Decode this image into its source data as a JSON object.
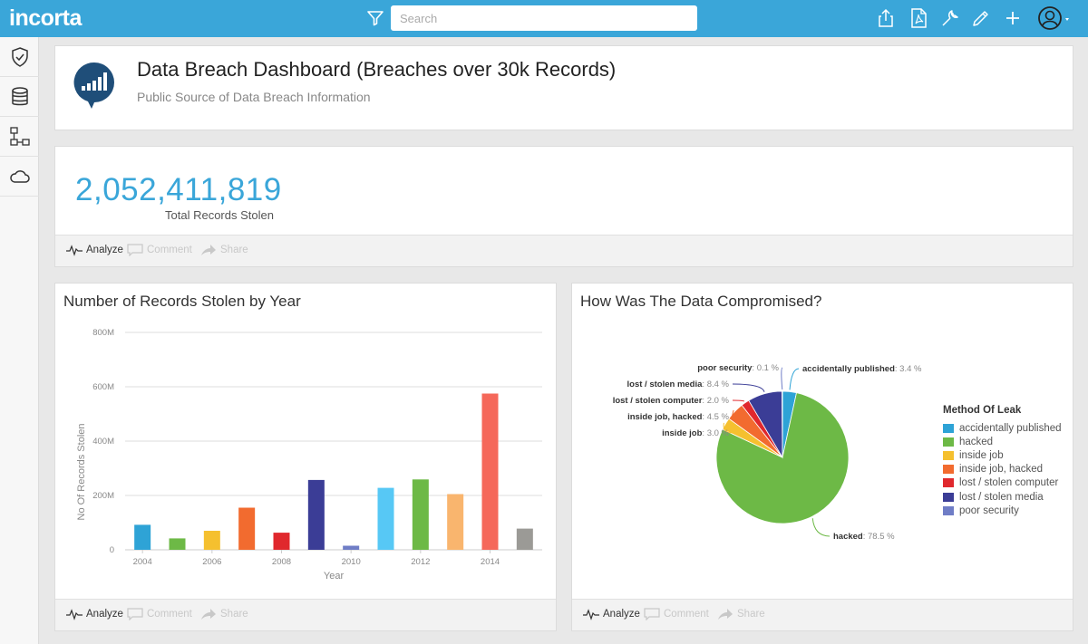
{
  "app": {
    "logo": "incorta",
    "search_placeholder": "Search"
  },
  "header": {
    "title": "Data Breach Dashboard (Breaches over 30k Records)",
    "subtitle": "Public Source of Data Breach Information"
  },
  "kpi": {
    "value": "2,052,411,819",
    "label": "Total Records Stolen"
  },
  "footer": {
    "analyze": "Analyze",
    "comment": "Comment",
    "share": "Share"
  },
  "bar_card": {
    "title": "Number of Records Stolen by Year"
  },
  "pie_card": {
    "title": "How Was The Data Compromised?"
  },
  "chart_data": [
    {
      "type": "bar",
      "title": "Number of Records Stolen by Year",
      "xlabel": "Year",
      "ylabel": "No Of Records Stolen",
      "ylim": [
        0,
        800
      ],
      "yticks": [
        "0",
        "200M",
        "400M",
        "600M",
        "800M"
      ],
      "xticks": [
        "2004",
        "2006",
        "2008",
        "2010",
        "2012",
        "2014"
      ],
      "categories": [
        "2004",
        "2005",
        "2006",
        "2007",
        "2008",
        "2009",
        "2010",
        "2011",
        "2012",
        "2013",
        "2014",
        "2015"
      ],
      "values": [
        92,
        42,
        70,
        155,
        63,
        257,
        15,
        228,
        259,
        205,
        575,
        78
      ],
      "colors": [
        "#2ea3d6",
        "#6db946",
        "#f5c02f",
        "#f26b2f",
        "#e0282d",
        "#3b3d96",
        "#6f7dc6",
        "#57c8f5",
        "#6db946",
        "#f9b56e",
        "#f5685a",
        "#9b9a96"
      ],
      "grid": true
    },
    {
      "type": "pie",
      "title": "How Was The Data Compromised?",
      "legend_title": "Method Of Leak",
      "legend_position": "right",
      "slices": [
        {
          "label": "accidentally published",
          "value": 3.4,
          "pct": "3.4 %",
          "color": "#2ea3d6"
        },
        {
          "label": "hacked",
          "value": 78.5,
          "pct": "78.5 %",
          "color": "#6db946"
        },
        {
          "label": "inside job",
          "value": 3.0,
          "pct": "3.0 %",
          "color": "#f5c02f"
        },
        {
          "label": "inside job, hacked",
          "value": 4.5,
          "pct": "4.5 %",
          "color": "#f26b2f"
        },
        {
          "label": "lost / stolen computer",
          "value": 2.0,
          "pct": "2.0 %",
          "color": "#e0282d"
        },
        {
          "label": "lost / stolen media",
          "value": 8.4,
          "pct": "8.4 %",
          "color": "#3b3d96"
        },
        {
          "label": "poor security",
          "value": 0.1,
          "pct": "0.1 %",
          "color": "#6f7dc6"
        }
      ]
    }
  ]
}
